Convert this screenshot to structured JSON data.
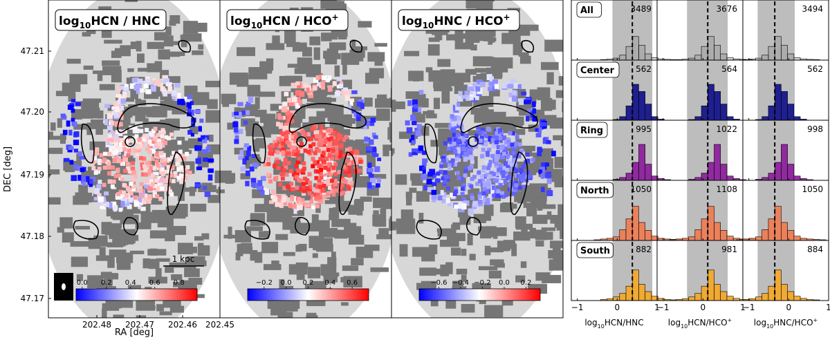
{
  "chart_data": [
    {
      "type": "heatmap",
      "panel": "map",
      "title_base": "log",
      "title_sub": "10",
      "title_rest": "HCN / HNC",
      "xlabel": "RA [deg]",
      "ylabel": "DEC [deg]",
      "xticks": [
        "202.48",
        "202.47",
        "202.46",
        "202.45"
      ],
      "yticks": [
        "47.21",
        "47.20",
        "47.19",
        "47.18",
        "47.17"
      ],
      "scalebar_label": "1 kpc",
      "colorbar": {
        "ticks": [
          "0.0",
          "0.2",
          "0.4",
          "0.6",
          "0.8"
        ],
        "range": [
          -0.05,
          0.95
        ],
        "cmap": "bwr"
      }
    },
    {
      "type": "heatmap",
      "panel": "map",
      "title_base": "log",
      "title_sub": "10",
      "title_rest": "HCN / HCO",
      "title_sup": "+",
      "colorbar": {
        "ticks": [
          "−0.2",
          "0.0",
          "0.2",
          "0.4",
          "0.6"
        ],
        "range": [
          -0.35,
          0.75
        ],
        "cmap": "bwr"
      }
    },
    {
      "type": "heatmap",
      "panel": "map",
      "title_base": "log",
      "title_sub": "10",
      "title_rest": "HNC / HCO",
      "title_sup": "+",
      "colorbar": {
        "ticks": [
          "−0.6",
          "−0.4",
          "−0.2",
          "0.0",
          "0.2"
        ],
        "range": [
          -0.78,
          0.33
        ],
        "cmap": "bwr"
      }
    },
    {
      "type": "bar",
      "panel": "histograms",
      "rows": [
        {
          "name": "All",
          "color": "#8c8c8c",
          "counts": [
            "3489",
            "3676",
            "3494"
          ]
        },
        {
          "name": "Center",
          "color": "#0d0d8a",
          "counts": [
            "562",
            "564",
            "562"
          ]
        },
        {
          "name": "Ring",
          "color": "#8b1a9b",
          "counts": [
            "995",
            "1022",
            "998"
          ]
        },
        {
          "name": "North",
          "color": "#f07a50",
          "counts": [
            "1050",
            "1108",
            "1050"
          ]
        },
        {
          "name": "South",
          "color": "#f5a623",
          "counts": [
            "882",
            "981",
            "884"
          ]
        }
      ],
      "columns": [
        {
          "xlabel_base": "log",
          "xlabel_sub": "10",
          "xlabel_rest": "HCN/HNC",
          "xlabel_sup": "",
          "median": 0.38,
          "shade": [
            -0.12,
            0.88
          ]
        },
        {
          "xlabel_base": "log",
          "xlabel_sub": "10",
          "xlabel_rest": "HCN/HCO",
          "xlabel_sup": "+",
          "median": 0.12,
          "shade": [
            -0.4,
            0.62
          ]
        },
        {
          "xlabel_base": "log",
          "xlabel_sub": "10",
          "xlabel_rest": "HNC/HCO",
          "xlabel_sup": "+",
          "median": -0.35,
          "shade": [
            -0.78,
            0.15
          ]
        }
      ],
      "xticks": [
        "−1",
        "0",
        "1"
      ],
      "xlim": [
        -1.15,
        1.0
      ]
    }
  ]
}
